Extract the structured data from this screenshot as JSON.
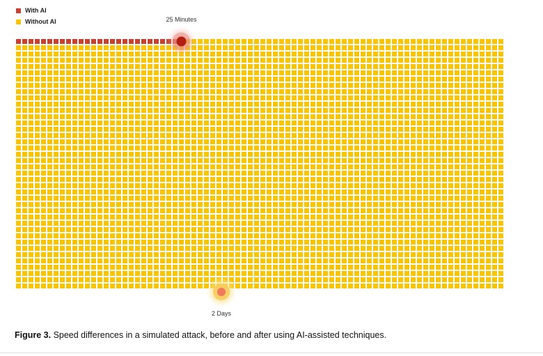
{
  "legend": {
    "items": [
      {
        "label": "With AI",
        "color": "#c8402f"
      },
      {
        "label": "Without AI",
        "color": "#f9c400"
      }
    ]
  },
  "chart_data": {
    "type": "waffle",
    "grid": {
      "columns": 78,
      "rows": 40
    },
    "series": [
      {
        "name": "With AI",
        "color": "#c8402f",
        "cells": 27,
        "marker_label": "25 Minutes",
        "marker_color": "#b21f12"
      },
      {
        "name": "Without AI",
        "color": "#f9c400",
        "cells": 3120,
        "marker_label": "2 Days",
        "marker_color": "#f07a5c"
      }
    ]
  },
  "caption": {
    "figure_label": "Figure 3.",
    "text": " Speed differences in a simulated attack, before and after using AI-assisted techniques."
  }
}
